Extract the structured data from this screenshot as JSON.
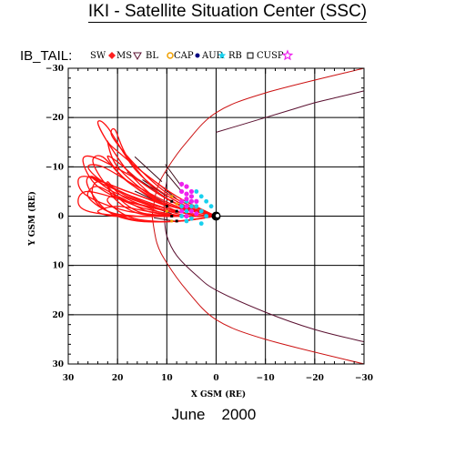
{
  "header": {
    "title": "IKI - Satellite Situation Center (SSC)"
  },
  "footer": {
    "month": "June",
    "year": "2000"
  },
  "colors": {
    "trajectory": "#ff1010",
    "magnetopause": "#cc1111",
    "bowshock": "#5a1030",
    "radial": "#3a0a18",
    "cyan": "#18d0ee",
    "magenta": "#ee22ee",
    "orange": "#f0a000",
    "black": "#000000"
  },
  "chart_data": {
    "type": "line",
    "title": "IKI - Satellite Situation Center (SSC)",
    "xlabel": "X GSM (RE)",
    "ylabel": "Y GSM (RE)",
    "xlim": [
      30,
      -30
    ],
    "ylim": [
      30,
      -30
    ],
    "x_ticks": [
      30,
      20,
      10,
      0,
      -10,
      -20,
      -30
    ],
    "y_ticks": [
      -30,
      -20,
      -10,
      0,
      10,
      20,
      30
    ],
    "x_tick_labels": [
      "30",
      "20",
      "10",
      "0",
      "−10",
      "−20",
      "−30"
    ],
    "y_tick_labels": [
      "−30",
      "−20",
      "−10",
      "0",
      "10",
      "20",
      "30"
    ],
    "grid": true,
    "legend": {
      "prefix": "IB_TAIL:",
      "placement": "top-left",
      "items": [
        {
          "label": "SW",
          "symbol": "diamond",
          "color": "#ff2020"
        },
        {
          "label": "MS",
          "symbol": "triangle-down",
          "color": "#5a1030"
        },
        {
          "label": "BL",
          "symbol": "sun",
          "color": "#f0a000"
        },
        {
          "label": "CAP",
          "symbol": "dot",
          "color": "#000080"
        },
        {
          "label": "AUR",
          "symbol": "star-filled",
          "color": "#18d0ee"
        },
        {
          "label": "RB",
          "symbol": "square",
          "color": "#000000"
        },
        {
          "label": "CUSP",
          "symbol": "star",
          "color": "#ee22ee"
        }
      ]
    },
    "boundaries": {
      "magnetopause": {
        "x": [
          13,
          12,
          10,
          6,
          0,
          -10,
          -30
        ],
        "y": [
          0,
          -5.5,
          -9.5,
          -15,
          -21,
          -25,
          -30
        ]
      },
      "bow_shock_outer": {
        "x": [
          0,
          -5,
          -10,
          -15,
          -20,
          -25,
          -30
        ],
        "y": [
          -17,
          -18.5,
          -20,
          -21.5,
          -23,
          -24.2,
          -25.4
        ]
      },
      "bow_shock_inner": {
        "x": [
          10,
          10.5,
          10.5,
          10,
          8,
          4,
          0,
          -10,
          -20,
          -30
        ],
        "y": [
          -7,
          -4,
          0,
          4,
          8,
          12,
          15,
          19.5,
          23,
          25.5
        ]
      }
    },
    "series": [
      {
        "name": "IB_TAIL orbits",
        "points": [
          [
            0,
            0
          ],
          [
            8,
            -3
          ],
          [
            16,
            -9
          ],
          [
            22,
            -18
          ],
          [
            24,
            -19
          ],
          [
            22,
            -15
          ],
          [
            17,
            -8
          ],
          [
            10,
            -2
          ],
          [
            4,
            0
          ]
        ]
      },
      {
        "points": [
          [
            0,
            0
          ],
          [
            9,
            -4
          ],
          [
            16,
            -10
          ],
          [
            21,
            -16
          ],
          [
            20.5,
            -17.5
          ],
          [
            18,
            -12
          ],
          [
            12,
            -5
          ],
          [
            5,
            -1
          ]
        ]
      },
      {
        "points": [
          [
            0,
            0
          ],
          [
            8,
            -4
          ],
          [
            15,
            -9
          ],
          [
            21,
            -14
          ],
          [
            22,
            -15
          ],
          [
            20,
            -10
          ],
          [
            13,
            -4
          ],
          [
            6,
            -1
          ]
        ]
      },
      {
        "points": [
          [
            0,
            0
          ],
          [
            9,
            -3
          ],
          [
            17,
            -8
          ],
          [
            25,
            -12
          ],
          [
            27,
            -11
          ],
          [
            24,
            -6
          ],
          [
            16,
            -2
          ],
          [
            7,
            0
          ]
        ]
      },
      {
        "points": [
          [
            0,
            0
          ],
          [
            9,
            -2
          ],
          [
            18,
            -5
          ],
          [
            26,
            -8
          ],
          [
            28,
            -7
          ],
          [
            26,
            -4
          ],
          [
            18,
            -1
          ],
          [
            8,
            0
          ]
        ]
      },
      {
        "points": [
          [
            0,
            0
          ],
          [
            9,
            -1
          ],
          [
            18,
            -3
          ],
          [
            26,
            -5
          ],
          [
            28,
            -3
          ],
          [
            26,
            -1
          ],
          [
            18,
            0
          ],
          [
            8,
            0
          ]
        ]
      },
      {
        "points": [
          [
            0,
            0
          ],
          [
            8,
            0
          ],
          [
            16,
            0
          ],
          [
            22,
            -1
          ],
          [
            25,
            -4
          ],
          [
            24,
            -7
          ],
          [
            18,
            -5
          ],
          [
            10,
            -2
          ]
        ]
      },
      {
        "points": [
          [
            0,
            0
          ],
          [
            8,
            1
          ],
          [
            16,
            1
          ],
          [
            22,
            -1
          ],
          [
            26,
            -6
          ],
          [
            25,
            -8
          ],
          [
            18,
            -4
          ],
          [
            10,
            -1
          ]
        ]
      },
      {
        "points": [
          [
            0,
            0
          ],
          [
            8,
            0
          ],
          [
            16,
            -1
          ],
          [
            22,
            -6
          ],
          [
            25,
            -11
          ],
          [
            23,
            -12
          ],
          [
            18,
            -7
          ],
          [
            10,
            -2
          ]
        ]
      },
      {
        "points": [
          [
            0,
            0
          ],
          [
            7,
            1
          ],
          [
            13,
            1
          ],
          [
            18,
            0
          ],
          [
            22,
            -3
          ],
          [
            20,
            -4
          ],
          [
            14,
            -1
          ],
          [
            7,
            0
          ]
        ]
      },
      {
        "points": [
          [
            0,
            0
          ],
          [
            8,
            -1
          ],
          [
            17,
            -4
          ],
          [
            24,
            -7
          ],
          [
            25,
            -8
          ],
          [
            21,
            -5
          ],
          [
            13,
            -2
          ],
          [
            6,
            0
          ]
        ]
      },
      {
        "points": [
          [
            0,
            0
          ],
          [
            7,
            -2
          ],
          [
            14,
            -6
          ],
          [
            20,
            -11
          ],
          [
            22,
            -12
          ],
          [
            19,
            -8
          ],
          [
            12,
            -3
          ],
          [
            5,
            -1
          ]
        ]
      },
      {
        "points": [
          [
            0,
            0
          ],
          [
            6,
            0
          ],
          [
            12,
            0
          ],
          [
            17,
            -1
          ],
          [
            21,
            -4
          ],
          [
            22,
            -7
          ],
          [
            19,
            -4
          ],
          [
            12,
            -1
          ]
        ]
      },
      {
        "points": [
          [
            0,
            0
          ],
          [
            7,
            1
          ],
          [
            15,
            1
          ],
          [
            22,
            -1
          ],
          [
            26,
            -4
          ],
          [
            24,
            -6
          ],
          [
            18,
            -3
          ],
          [
            10,
            -1
          ]
        ]
      },
      {
        "points": [
          [
            0,
            0
          ],
          [
            8,
            -2
          ],
          [
            16,
            -6
          ],
          [
            23,
            -10
          ],
          [
            26,
            -10
          ],
          [
            23,
            -7
          ],
          [
            15,
            -3
          ],
          [
            8,
            -1
          ]
        ]
      },
      {
        "points": [
          [
            0,
            0
          ],
          [
            7,
            0
          ],
          [
            14,
            -1
          ],
          [
            20,
            -2
          ],
          [
            24,
            -1
          ],
          [
            21,
            0
          ],
          [
            15,
            0
          ],
          [
            8,
            0
          ]
        ]
      }
    ]
  }
}
